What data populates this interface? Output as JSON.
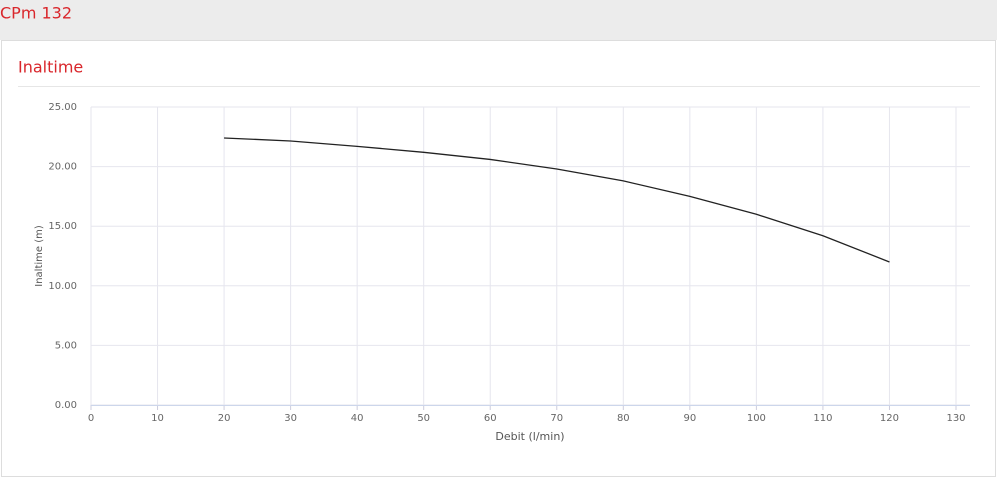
{
  "header": {
    "title": "CPm 132"
  },
  "chart_data": {
    "type": "line",
    "title": "Inaltime",
    "x_label": "Debit (l/min)",
    "y_label": "Inaltime (m)",
    "x": [
      20,
      30,
      40,
      50,
      60,
      70,
      80,
      90,
      100,
      110,
      120
    ],
    "values": [
      22.4,
      22.15,
      21.7,
      21.2,
      20.6,
      19.8,
      18.8,
      17.5,
      16.0,
      14.2,
      12.0
    ],
    "color": "#222222",
    "xlim": [
      0,
      130
    ],
    "xticks": [
      0,
      10,
      20,
      30,
      40,
      50,
      60,
      70,
      80,
      90,
      100,
      110,
      120,
      130
    ],
    "ylim": [
      0,
      25
    ],
    "yticks": [
      {
        "value": 0,
        "label": "0.00"
      },
      {
        "value": 5,
        "label": "5.00"
      },
      {
        "value": 10,
        "label": "10.00"
      },
      {
        "value": 15,
        "label": "15.00"
      },
      {
        "value": 20,
        "label": "20.00"
      },
      {
        "value": 25,
        "label": "25.00"
      }
    ],
    "grid": true
  }
}
